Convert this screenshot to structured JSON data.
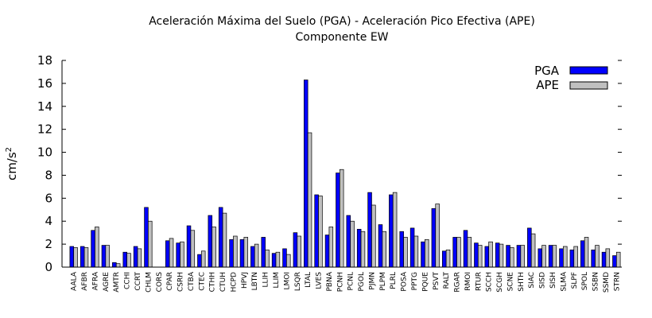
{
  "chart_data": {
    "type": "bar",
    "title": "Aceleración Máxima del Suelo (PGA) -   Aceleración Pico Efectiva (APE)",
    "subtitle": "Componente EW",
    "ylabel": "cm/s",
    "ylabel_superscript": "2",
    "ylim": [
      0,
      18
    ],
    "yticks": [
      0,
      2,
      4,
      6,
      8,
      10,
      12,
      14,
      16,
      18
    ],
    "grid": false,
    "legend_position": "top-right",
    "categories": [
      "AALA",
      "AFBR",
      "AFRA",
      "AGRE",
      "AMTR",
      "CCHI",
      "CCRT",
      "CHLM",
      "CORS",
      "CPAR",
      "CSRH",
      "CTBA",
      "CTEC",
      "CTHH",
      "CTUH",
      "HCPD",
      "HPVJ",
      "LBTN",
      "LLIH",
      "LLIM",
      "LMOI",
      "LSQR",
      "LTAL",
      "LVES",
      "PBNA",
      "PCNH",
      "PCNL",
      "PGOL",
      "PJMN",
      "PLPM",
      "PLRL",
      "POSA",
      "PPTG",
      "PQUE",
      "PSVT",
      "RALT",
      "RGAR",
      "RMOI",
      "RTUR",
      "SCCH",
      "SCGH",
      "SCNE",
      "SHTH",
      "SIAC",
      "SISD",
      "SISH",
      "SLMA",
      "SLPF",
      "SPOL",
      "SSBN",
      "SSMD",
      "STRN"
    ],
    "series": [
      {
        "name": "PGA",
        "color": "#0000ff",
        "values": [
          1.8,
          1.8,
          3.2,
          1.9,
          0.4,
          1.3,
          1.8,
          5.2,
          0.0,
          2.3,
          2.1,
          3.6,
          1.1,
          4.5,
          5.2,
          2.4,
          2.4,
          1.8,
          2.6,
          1.2,
          1.6,
          3.0,
          16.3,
          6.3,
          2.8,
          8.2,
          4.5,
          3.3,
          6.5,
          3.7,
          6.3,
          3.1,
          3.4,
          2.2,
          5.1,
          1.4,
          2.6,
          3.2,
          2.1,
          1.8,
          2.1,
          1.9,
          1.9,
          3.4,
          1.6,
          1.9,
          1.6,
          1.5,
          2.3,
          1.5,
          1.3,
          1.0
        ]
      },
      {
        "name": "APE",
        "color": "#c0c0c0",
        "values": [
          1.7,
          1.7,
          3.5,
          1.9,
          0.3,
          1.2,
          1.6,
          4.0,
          0.0,
          2.5,
          2.2,
          3.2,
          1.4,
          3.5,
          4.7,
          2.7,
          2.6,
          2.0,
          1.5,
          1.3,
          1.1,
          2.7,
          11.7,
          6.2,
          3.5,
          8.5,
          4.0,
          3.1,
          5.4,
          3.1,
          6.5,
          2.6,
          2.7,
          2.4,
          5.5,
          1.5,
          2.6,
          2.6,
          1.9,
          2.2,
          2.0,
          1.7,
          1.9,
          2.9,
          1.9,
          1.9,
          1.8,
          1.8,
          2.6,
          1.9,
          1.6,
          1.3
        ]
      }
    ]
  }
}
